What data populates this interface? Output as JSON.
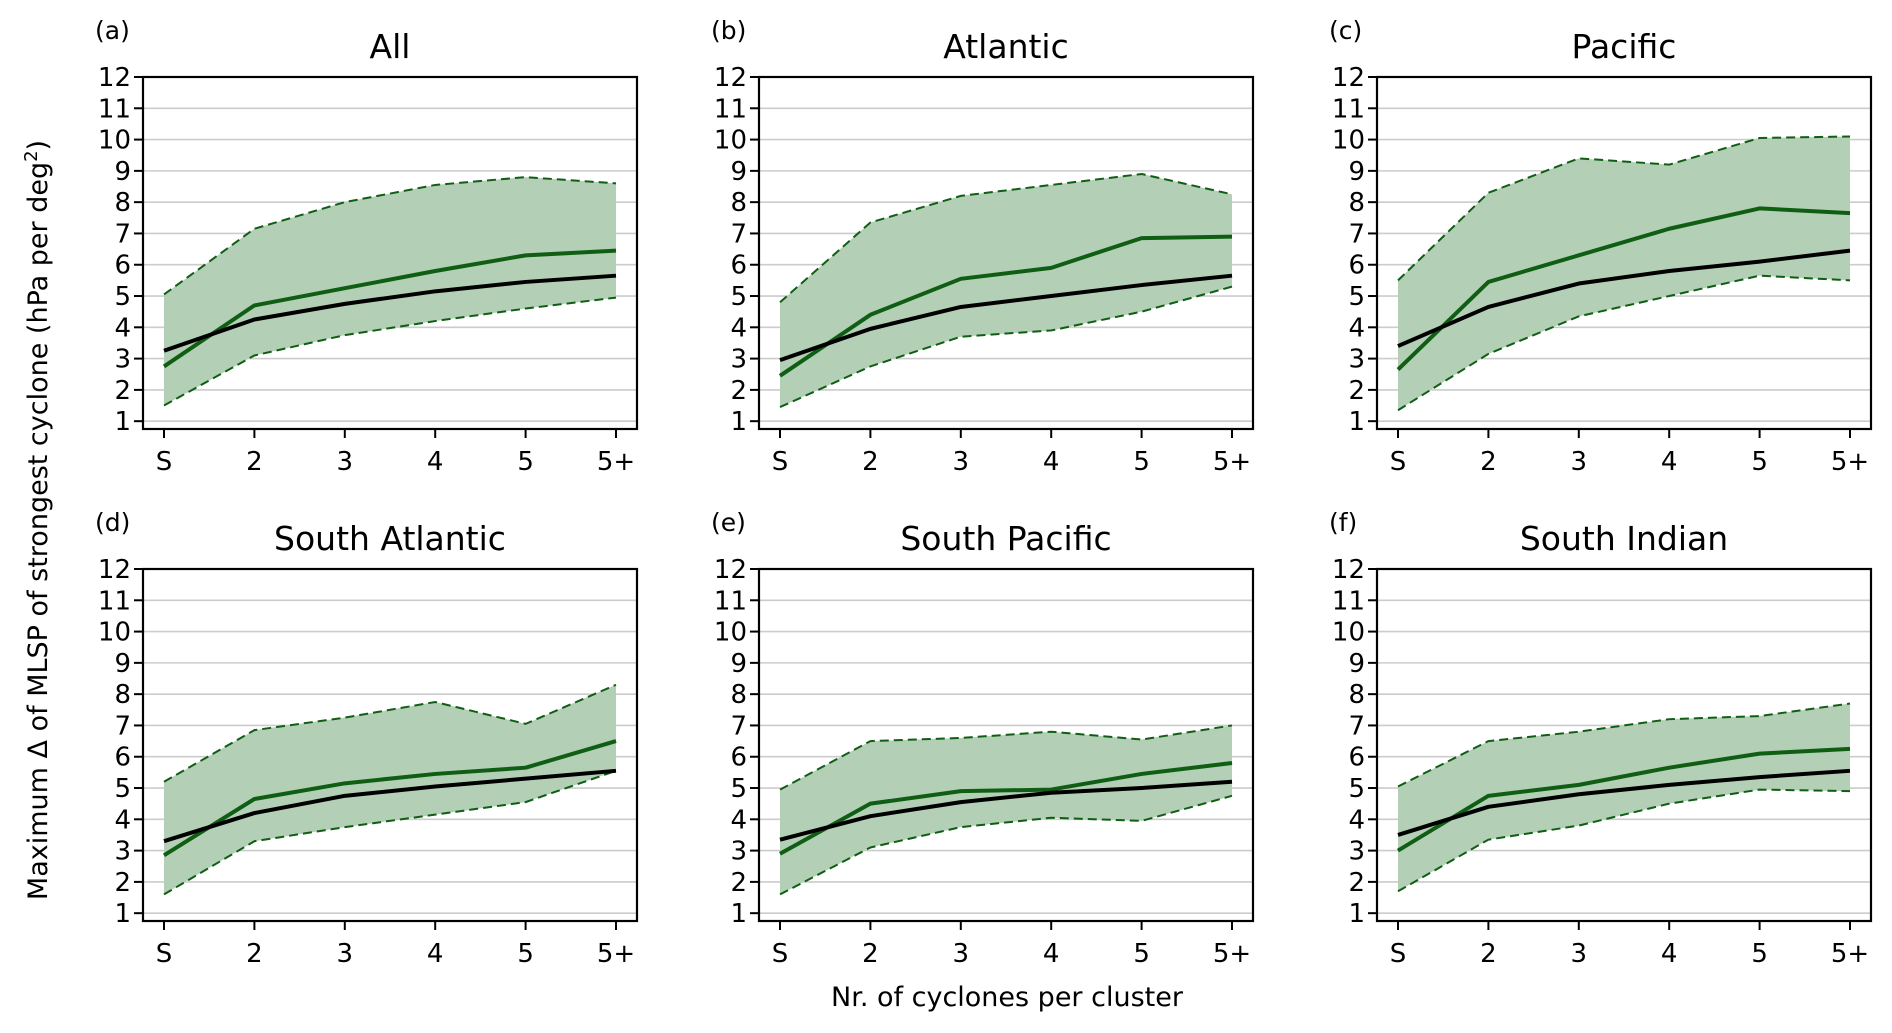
{
  "chart_data": {
    "type": "line",
    "title": "",
    "xlabel": "Nr. of cyclones per cluster",
    "ylabel": "Maximum Δ of MLSP of strongest cyclone (hPa per deg",
    "ylabel_superscript": "2",
    "ylabel_suffix": ")",
    "categories": [
      "S",
      "2",
      "3",
      "4",
      "5",
      "5+"
    ],
    "yticks": [
      1,
      2,
      3,
      4,
      5,
      6,
      7,
      8,
      9,
      10,
      11,
      12
    ],
    "ylim": [
      0.75,
      12
    ],
    "grid": "horizontal",
    "colors": {
      "band_fill": "#b3cfb6",
      "band_edge": "#0f5e14",
      "green_line": "#0f5e14",
      "black_line": "#000000",
      "grid": "#cccccc"
    },
    "panels": [
      {
        "letter": "(a)",
        "title": "All",
        "series": [
          {
            "name": "upper",
            "style": "dashed",
            "values": [
              5.05,
              7.15,
              8.0,
              8.55,
              8.8,
              8.6
            ]
          },
          {
            "name": "lower",
            "style": "dashed",
            "values": [
              1.5,
              3.1,
              3.75,
              4.2,
              4.6,
              4.95
            ]
          },
          {
            "name": "green",
            "style": "solid",
            "values": [
              2.75,
              4.7,
              5.25,
              5.8,
              6.3,
              6.45
            ]
          },
          {
            "name": "black",
            "style": "solid",
            "values": [
              3.25,
              4.25,
              4.75,
              5.15,
              5.45,
              5.65
            ]
          }
        ]
      },
      {
        "letter": "(b)",
        "title": "Atlantic",
        "series": [
          {
            "name": "upper",
            "style": "dashed",
            "values": [
              4.8,
              7.35,
              8.2,
              8.55,
              8.9,
              8.25
            ]
          },
          {
            "name": "lower",
            "style": "dashed",
            "values": [
              1.45,
              2.75,
              3.7,
              3.9,
              4.5,
              5.3
            ]
          },
          {
            "name": "green",
            "style": "solid",
            "values": [
              2.45,
              4.4,
              5.55,
              5.9,
              6.85,
              6.9
            ]
          },
          {
            "name": "black",
            "style": "solid",
            "values": [
              2.95,
              3.95,
              4.65,
              5.0,
              5.35,
              5.65
            ]
          }
        ]
      },
      {
        "letter": "(c)",
        "title": "Pacific",
        "series": [
          {
            "name": "upper",
            "style": "dashed",
            "values": [
              5.5,
              8.3,
              9.4,
              9.2,
              10.05,
              10.1
            ]
          },
          {
            "name": "lower",
            "style": "dashed",
            "values": [
              1.35,
              3.15,
              4.35,
              5.0,
              5.65,
              5.5
            ]
          },
          {
            "name": "green",
            "style": "solid",
            "values": [
              2.65,
              5.45,
              6.3,
              7.15,
              7.8,
              7.65
            ]
          },
          {
            "name": "black",
            "style": "solid",
            "values": [
              3.4,
              4.65,
              5.4,
              5.8,
              6.1,
              6.45
            ]
          }
        ]
      },
      {
        "letter": "(d)",
        "title": "South Atlantic",
        "series": [
          {
            "name": "upper",
            "style": "dashed",
            "values": [
              5.2,
              6.85,
              7.25,
              7.75,
              7.05,
              8.3
            ]
          },
          {
            "name": "lower",
            "style": "dashed",
            "values": [
              1.6,
              3.3,
              3.75,
              4.15,
              4.55,
              5.55
            ]
          },
          {
            "name": "green",
            "style": "solid",
            "values": [
              2.85,
              4.65,
              5.15,
              5.45,
              5.65,
              6.5
            ]
          },
          {
            "name": "black",
            "style": "solid",
            "values": [
              3.3,
              4.2,
              4.75,
              5.05,
              5.3,
              5.55
            ]
          }
        ]
      },
      {
        "letter": "(e)",
        "title": "South Pacific",
        "series": [
          {
            "name": "upper",
            "style": "dashed",
            "values": [
              4.95,
              6.5,
              6.6,
              6.8,
              6.55,
              7.0
            ]
          },
          {
            "name": "lower",
            "style": "dashed",
            "values": [
              1.6,
              3.1,
              3.75,
              4.05,
              3.95,
              4.75
            ]
          },
          {
            "name": "green",
            "style": "solid",
            "values": [
              2.9,
              4.5,
              4.9,
              4.95,
              5.45,
              5.8
            ]
          },
          {
            "name": "black",
            "style": "solid",
            "values": [
              3.35,
              4.1,
              4.55,
              4.85,
              5.0,
              5.2
            ]
          }
        ]
      },
      {
        "letter": "(f)",
        "title": "South Indian",
        "series": [
          {
            "name": "upper",
            "style": "dashed",
            "values": [
              5.05,
              6.5,
              6.8,
              7.2,
              7.3,
              7.7
            ]
          },
          {
            "name": "lower",
            "style": "dashed",
            "values": [
              1.7,
              3.35,
              3.8,
              4.5,
              4.95,
              4.9
            ]
          },
          {
            "name": "green",
            "style": "solid",
            "values": [
              3.0,
              4.75,
              5.1,
              5.65,
              6.1,
              6.25
            ]
          },
          {
            "name": "black",
            "style": "solid",
            "values": [
              3.5,
              4.4,
              4.8,
              5.1,
              5.35,
              5.55
            ]
          }
        ]
      }
    ]
  }
}
